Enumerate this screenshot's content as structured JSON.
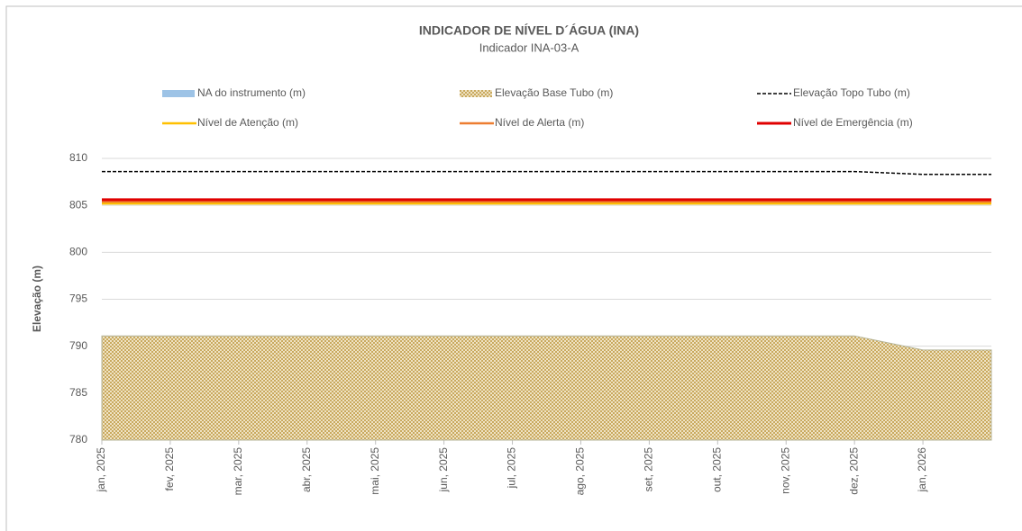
{
  "chart_data": {
    "type": "line",
    "title": "INDICADOR DE NÍVEL D´ÁGUA (INA)",
    "subtitle": "Indicador INA-03-A",
    "y_label": "Elevação (m)",
    "x": [
      "2025-01",
      "2025-02",
      "2025-03",
      "2025-04",
      "2025-05",
      "2025-06",
      "2025-07",
      "2025-08",
      "2025-09",
      "2025-10",
      "2025-11",
      "2025-12",
      "2026-01",
      "2026-02"
    ],
    "xlim": [
      "2025-01",
      "2026-02"
    ],
    "xticks": [
      {
        "value": "2025-01",
        "label": "jan, 2025"
      },
      {
        "value": "2025-02",
        "label": "fev, 2025"
      },
      {
        "value": "2025-03",
        "label": "mar, 2025"
      },
      {
        "value": "2025-04",
        "label": "abr, 2025"
      },
      {
        "value": "2025-05",
        "label": "mai, 2025"
      },
      {
        "value": "2025-06",
        "label": "jun, 2025"
      },
      {
        "value": "2025-07",
        "label": "jul, 2025"
      },
      {
        "value": "2025-08",
        "label": "ago, 2025"
      },
      {
        "value": "2025-09",
        "label": "set, 2025"
      },
      {
        "value": "2025-10",
        "label": "out, 2025"
      },
      {
        "value": "2025-11",
        "label": "nov, 2025"
      },
      {
        "value": "2025-12",
        "label": "dez, 2025"
      },
      {
        "value": "2026-01",
        "label": "jan, 2026"
      }
    ],
    "ylim": [
      780,
      810
    ],
    "yticks": [
      780,
      785,
      790,
      795,
      800,
      805,
      810
    ],
    "grid": true,
    "legend": "top",
    "series": [
      {
        "name": "NA do instrumento (m)",
        "color": "#9dc3e6",
        "style": "line",
        "values": [
          null,
          null,
          null,
          null,
          null,
          null,
          null,
          null,
          null,
          null,
          null,
          null,
          null,
          null
        ]
      },
      {
        "name": "Elevação Base Tubo (m)",
        "color": "#c9a95e",
        "style": "area",
        "values": [
          791.1,
          791.1,
          791.1,
          791.1,
          791.1,
          791.1,
          791.1,
          791.1,
          791.1,
          791.1,
          791.1,
          791.1,
          789.6,
          789.6
        ]
      },
      {
        "name": "Elevação Topo Tubo (m)",
        "color": "#000000",
        "style": "dashed",
        "values": [
          808.6,
          808.6,
          808.6,
          808.6,
          808.6,
          808.6,
          808.6,
          808.6,
          808.6,
          808.6,
          808.6,
          808.6,
          808.3,
          808.3
        ]
      },
      {
        "name": "Nível de Atenção (m)",
        "color": "#ffc000",
        "style": "line",
        "values": [
          805.2,
          805.2,
          805.2,
          805.2,
          805.2,
          805.2,
          805.2,
          805.2,
          805.2,
          805.2,
          805.2,
          805.2,
          805.2,
          805.2
        ]
      },
      {
        "name": "Nível de Alerta (m)",
        "color": "#ed7d31",
        "style": "line",
        "values": [
          805.4,
          805.4,
          805.4,
          805.4,
          805.4,
          805.4,
          805.4,
          805.4,
          805.4,
          805.4,
          805.4,
          805.4,
          805.4,
          805.4
        ]
      },
      {
        "name": "Nível de Emergência (m)",
        "color": "#e00000",
        "style": "thick",
        "values": [
          805.6,
          805.6,
          805.6,
          805.6,
          805.6,
          805.6,
          805.6,
          805.6,
          805.6,
          805.6,
          805.6,
          805.6,
          805.6,
          805.6
        ]
      }
    ]
  }
}
